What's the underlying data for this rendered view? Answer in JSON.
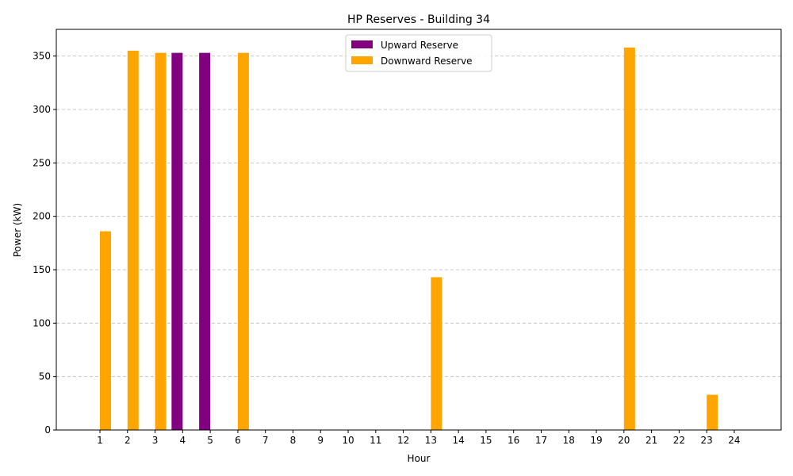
{
  "chart_data": {
    "type": "bar",
    "title": "HP Reserves - Building 34",
    "xlabel": "Hour",
    "ylabel": "Power (kW)",
    "categories": [
      "1",
      "2",
      "3",
      "4",
      "5",
      "6",
      "7",
      "8",
      "9",
      "10",
      "11",
      "12",
      "13",
      "14",
      "15",
      "16",
      "17",
      "18",
      "19",
      "20",
      "21",
      "22",
      "23",
      "24"
    ],
    "ylim": [
      0,
      375
    ],
    "yticks": [
      0,
      50,
      100,
      150,
      200,
      250,
      300,
      350
    ],
    "grid": "y-dashed",
    "legend_position": "top-center",
    "series": [
      {
        "name": "Upward Reserve",
        "color": "#800080",
        "values": [
          0,
          0,
          0,
          353,
          353,
          0,
          0,
          0,
          0,
          0,
          0,
          0,
          0,
          0,
          0,
          0,
          0,
          0,
          0,
          0,
          0,
          0,
          0,
          0
        ]
      },
      {
        "name": "Downward Reserve",
        "color": "#FFA500",
        "values": [
          186,
          355,
          353,
          0,
          0,
          353,
          0,
          0,
          0,
          0,
          0,
          0,
          143,
          0,
          0,
          0,
          0,
          0,
          0,
          358,
          0,
          0,
          33,
          0
        ]
      }
    ]
  }
}
